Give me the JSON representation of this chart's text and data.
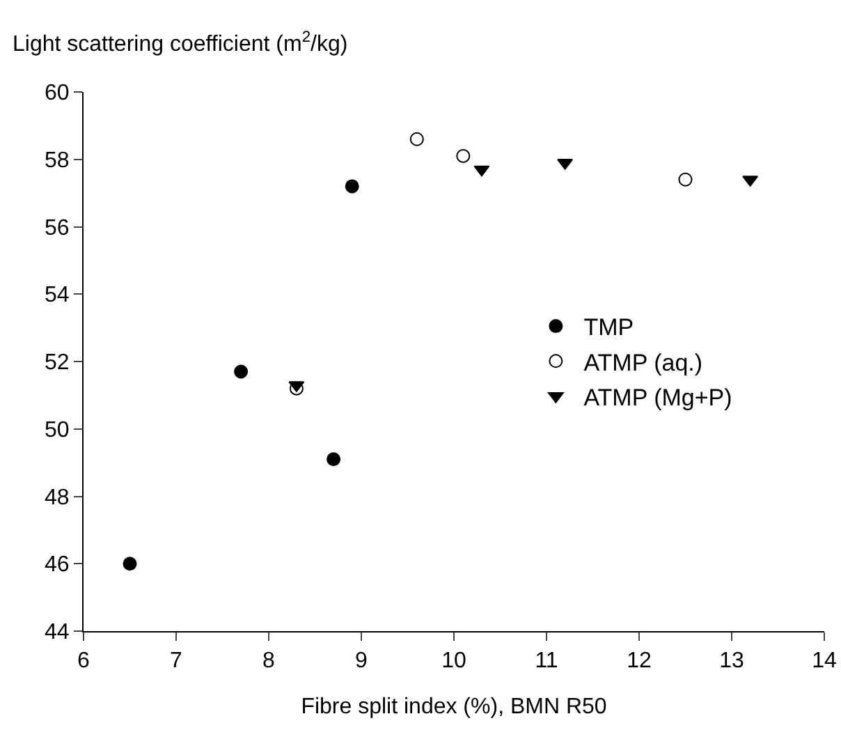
{
  "chart_data": {
    "type": "scatter",
    "xlabel": "Fibre split index (%), BMN R50",
    "ylabel": "Light scattering coefficient (m$^{2}$/kg)",
    "series": [
      {
        "name": "TMP",
        "color": "#000000",
        "marker": "circle",
        "x": [
          6.5,
          7.7,
          8.7,
          8.9
        ],
        "values": [
          46.0,
          51.7,
          49.1,
          57.2
        ]
      },
      {
        "name": "ATMP (aq.)",
        "color": "#000000",
        "marker": "circle-open",
        "x": [
          8.3,
          9.6,
          10.1,
          12.5
        ],
        "values": [
          51.2,
          58.6,
          58.1,
          57.4
        ]
      },
      {
        "name": "ATMP (Mg+P)",
        "color": "#000000",
        "marker": "triangle",
        "x": [
          8.3,
          10.3,
          11.2,
          13.2
        ],
        "values": [
          51.3,
          57.7,
          57.9,
          57.4
        ]
      }
    ],
    "xlim": [
      6,
      14
    ],
    "xticks": [
      6,
      7,
      8,
      9,
      10,
      11,
      12,
      13,
      14
    ],
    "ylim": [
      44,
      60
    ],
    "yticks": [
      44,
      46,
      48,
      50,
      52,
      54,
      56,
      58,
      60
    ],
    "grid": false,
    "legend": "right"
  }
}
